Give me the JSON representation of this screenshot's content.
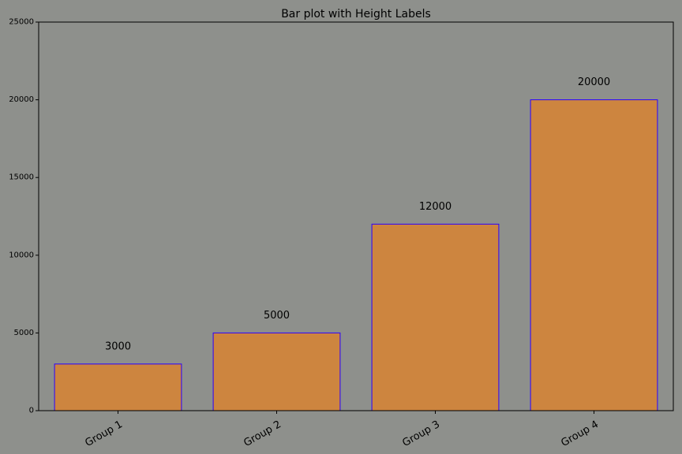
{
  "chart_data": {
    "type": "bar",
    "title": "Bar plot with Height Labels",
    "xlabel": "",
    "ylabel": "",
    "categories": [
      "Group 1",
      "Group 2",
      "Group 3",
      "Group 4"
    ],
    "values": [
      3000,
      5000,
      12000,
      20000
    ],
    "value_labels": [
      "3000",
      "5000",
      "12000",
      "20000"
    ],
    "ylim": [
      0,
      25000
    ],
    "yticks": [
      0,
      5000,
      10000,
      15000,
      20000,
      25000
    ],
    "ytick_labels": [
      "0",
      "5000",
      "10000",
      "15000",
      "20000",
      "25000"
    ],
    "xtick_rotation_deg": 30,
    "grid": false,
    "legend": "none",
    "colors": {
      "background": "#8e908c",
      "bar_fill": "#cd853f",
      "bar_edge": "#2b00ff",
      "axes": "#000000",
      "text": "#000000"
    }
  }
}
